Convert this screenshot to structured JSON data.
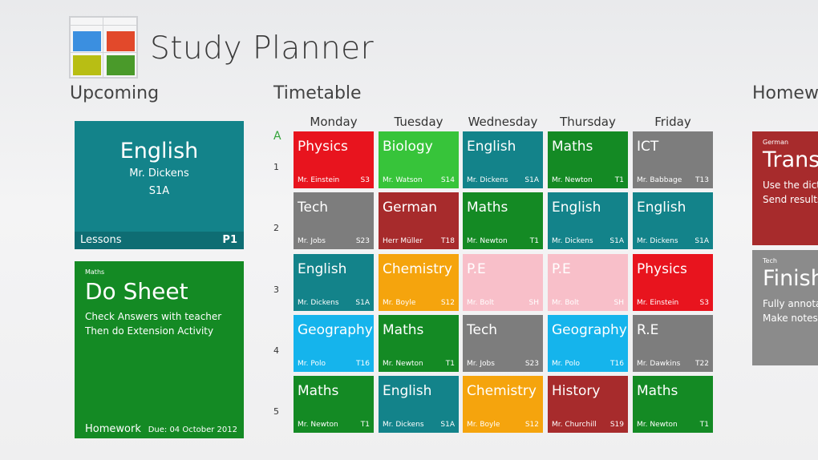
{
  "app": {
    "title": "Study Planner",
    "logo_icon": "grid-logo-icon"
  },
  "sections": {
    "upcoming": "Upcoming",
    "timetable": "Timetable",
    "homework": "Homework"
  },
  "upcoming": {
    "lesson": {
      "subject": "English",
      "teacher": "Mr. Dickens",
      "room": "S1A",
      "footer_label": "Lessons",
      "period": "P1",
      "color": "#13838a"
    },
    "homework": {
      "category": "Maths",
      "title": "Do Sheet",
      "line1": "Check Answers with teacher",
      "line2": "Then do Extension Activity",
      "footer_label": "Homework",
      "due": "Due: 04 October 2012",
      "color": "#148a24"
    }
  },
  "timetable": {
    "week": "A",
    "days": [
      "Monday",
      "Tuesday",
      "Wednesday",
      "Thursday",
      "Friday"
    ],
    "periods": [
      "1",
      "2",
      "3",
      "4",
      "5"
    ],
    "rows": [
      [
        {
          "subject": "Physics",
          "teacher": "Mr. Einstein",
          "room": "S3",
          "color": "#e8141e"
        },
        {
          "subject": "Biology",
          "teacher": "Mr. Watson",
          "room": "S14",
          "color": "#37c43a"
        },
        {
          "subject": "English",
          "teacher": "Mr. Dickens",
          "room": "S1A",
          "color": "#13838a"
        },
        {
          "subject": "Maths",
          "teacher": "Mr. Newton",
          "room": "T1",
          "color": "#148a24"
        },
        {
          "subject": "ICT",
          "teacher": "Mr. Babbage",
          "room": "T13",
          "color": "#7d7d7d"
        }
      ],
      [
        {
          "subject": "Tech",
          "teacher": "Mr. Jobs",
          "room": "S23",
          "color": "#7d7d7d"
        },
        {
          "subject": "German",
          "teacher": "Herr Müller",
          "room": "T18",
          "color": "#a72b2c"
        },
        {
          "subject": "Maths",
          "teacher": "Mr. Newton",
          "room": "T1",
          "color": "#148a24"
        },
        {
          "subject": "English",
          "teacher": "Mr. Dickens",
          "room": "S1A",
          "color": "#13838a"
        },
        {
          "subject": "English",
          "teacher": "Mr. Dickens",
          "room": "S1A",
          "color": "#13838a"
        }
      ],
      [
        {
          "subject": "English",
          "teacher": "Mr. Dickens",
          "room": "S1A",
          "color": "#13838a"
        },
        {
          "subject": "Chemistry",
          "teacher": "Mr. Boyle",
          "room": "S12",
          "color": "#f5a40d"
        },
        {
          "subject": "P.E",
          "teacher": "Mr. Bolt",
          "room": "SH",
          "color": "#f8bfc9"
        },
        {
          "subject": "P.E",
          "teacher": "Mr. Bolt",
          "room": "SH",
          "color": "#f8bfc9"
        },
        {
          "subject": "Physics",
          "teacher": "Mr. Einstein",
          "room": "S3",
          "color": "#e8141e"
        }
      ],
      [
        {
          "subject": "Geography",
          "teacher": "Mr. Polo",
          "room": "T16",
          "color": "#15b4ec"
        },
        {
          "subject": "Maths",
          "teacher": "Mr. Newton",
          "room": "T1",
          "color": "#148a24"
        },
        {
          "subject": "Tech",
          "teacher": "Mr. Jobs",
          "room": "S23",
          "color": "#7d7d7d"
        },
        {
          "subject": "Geography",
          "teacher": "Mr. Polo",
          "room": "T16",
          "color": "#15b4ec"
        },
        {
          "subject": "R.E",
          "teacher": "Mr. Dawkins",
          "room": "T22",
          "color": "#7d7d7d"
        }
      ],
      [
        {
          "subject": "Maths",
          "teacher": "Mr. Newton",
          "room": "T1",
          "color": "#148a24"
        },
        {
          "subject": "English",
          "teacher": "Mr. Dickens",
          "room": "S1A",
          "color": "#13838a"
        },
        {
          "subject": "Chemistry",
          "teacher": "Mr. Boyle",
          "room": "S12",
          "color": "#f5a40d"
        },
        {
          "subject": "History",
          "teacher": "Mr. Churchill",
          "room": "S19",
          "color": "#a72b2c"
        },
        {
          "subject": "Maths",
          "teacher": "Mr. Newton",
          "room": "T1",
          "color": "#148a24"
        }
      ]
    ]
  },
  "homework_list": [
    {
      "category": "German",
      "title": "Transl",
      "line1": "Use the dicti",
      "line2": "Send results",
      "color": "#a72b2c"
    },
    {
      "category": "Tech",
      "title": "Finish",
      "line1": "Fully annota",
      "line2": "Make notes",
      "color": "#8b8b8b"
    }
  ]
}
